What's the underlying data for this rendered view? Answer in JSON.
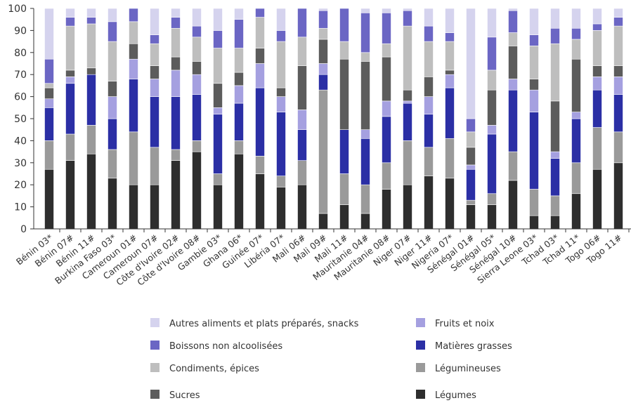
{
  "chart_data": {
    "type": "bar",
    "stacked": true,
    "categories": [
      "Bénin 03*",
      "Bénin 07#",
      "Bénin 11#",
      "Burkina Faso 03*",
      "Cameroun 01#",
      "Cameroun 07#",
      "Côte d'Ivoire 02#",
      "Côte d'Ivoire 08#",
      "Gambie 03*",
      "Ghana 06*",
      "Guinée 07*",
      "Libéria 07*",
      "Mali 06#",
      "Mali 09#",
      "Mali 11#",
      "Mauritanie 04#",
      "Mauritanie 08#",
      "Niger 07#",
      "Niger 11#",
      "Nigeria 07*",
      "Sénégal 01#",
      "Sénégal 05*",
      "Sénégal 10#",
      "Sierra Leone 03*",
      "Tchad 03*",
      "Tchad 11*",
      "Togo 06#",
      "Togo 11#"
    ],
    "ylim": [
      0,
      100
    ],
    "yticks": [
      0,
      10,
      20,
      30,
      40,
      50,
      60,
      70,
      80,
      90,
      100
    ],
    "legend_position": "bottom",
    "series": [
      {
        "name": "Légumes",
        "color": "#2e2e2e",
        "values": [
          27,
          31,
          34,
          23,
          20,
          20,
          31,
          35,
          20,
          34,
          25,
          19,
          20,
          7,
          11,
          7,
          18,
          20,
          24,
          23,
          11,
          11,
          22,
          6,
          6,
          16,
          27,
          30
        ]
      },
      {
        "name": "Légumineuses",
        "color": "#9a9a9a",
        "values": [
          13,
          12,
          13,
          13,
          24,
          17,
          5,
          5,
          5,
          6,
          8,
          5,
          11,
          56,
          14,
          13,
          12,
          20,
          13,
          18,
          2,
          5,
          13,
          12,
          9,
          14,
          19,
          14
        ]
      },
      {
        "name": "Matières grasses",
        "color": "#2b2fa5",
        "values": [
          15,
          23,
          23,
          14,
          24,
          23,
          24,
          21,
          27,
          17,
          31,
          29,
          14,
          7,
          20,
          21,
          21,
          17,
          15,
          23,
          14,
          27,
          28,
          35,
          17,
          20,
          17,
          17
        ]
      },
      {
        "name": "Fruits et noix",
        "color": "#a5a0e0",
        "values": [
          4,
          3,
          0,
          10,
          9,
          8,
          12,
          9,
          3,
          8,
          11,
          7,
          9,
          5,
          0,
          4,
          7,
          1,
          8,
          6,
          2,
          4,
          5,
          10,
          3,
          3,
          6,
          8
        ]
      },
      {
        "name": "Sucres",
        "color": "#5c5c5c",
        "values": [
          5,
          3,
          3,
          7,
          7,
          6,
          6,
          6,
          11,
          6,
          7,
          4,
          20,
          11,
          32,
          31,
          20,
          5,
          9,
          2,
          8,
          16,
          15,
          5,
          23,
          24,
          5,
          5
        ]
      },
      {
        "name": "Condiments, épices",
        "color": "#bebebe",
        "values": [
          2,
          20,
          20,
          18,
          10,
          10,
          13,
          11,
          16,
          11,
          14,
          21,
          13,
          5,
          8,
          4,
          6,
          29,
          16,
          13,
          7,
          9,
          6,
          15,
          26,
          9,
          16,
          18
        ]
      },
      {
        "name": "Boissons non alcoolisées",
        "color": "#6b66c4",
        "values": [
          11,
          4,
          3,
          9,
          6,
          4,
          5,
          5,
          8,
          13,
          4,
          5,
          13,
          8,
          15,
          18,
          14,
          7,
          7,
          4,
          6,
          15,
          10,
          5,
          7,
          5,
          3,
          4
        ]
      },
      {
        "name": "Autres aliments et plats préparés, snacks",
        "color": "#d5d3ee",
        "values": [
          23,
          4,
          4,
          6,
          0,
          12,
          4,
          8,
          10,
          5,
          0,
          10,
          0,
          1,
          0,
          2,
          2,
          1,
          8,
          11,
          50,
          13,
          1,
          12,
          9,
          9,
          7,
          4
        ]
      }
    ],
    "legend_layout": [
      [
        "Autres aliments et plats préparés, snacks",
        "Fruits et noix"
      ],
      [
        "Boissons non alcoolisées",
        "Matières grasses"
      ],
      [
        "Condiments, épices",
        "Légumineuses"
      ],
      [
        "Sucres",
        "Légumes"
      ]
    ]
  }
}
